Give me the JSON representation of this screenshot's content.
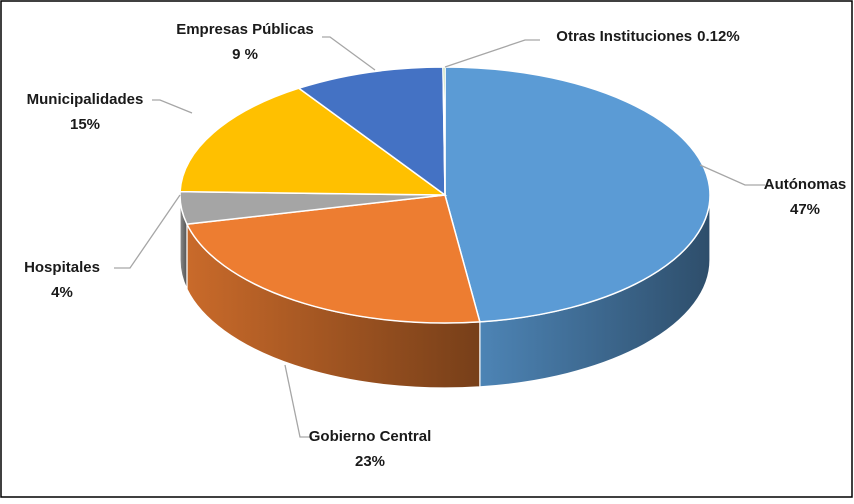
{
  "chart_data": {
    "type": "pie3d",
    "categories": [
      "Autónomas",
      "Gobierno Central",
      "Hospitales",
      "Municipalidades",
      "Empresas Públicas",
      "Otras Instituciones"
    ],
    "values": [
      47,
      23,
      4,
      15,
      9,
      0.12
    ],
    "value_labels": [
      "47%",
      "23%",
      "4%",
      "15%",
      "9 %",
      "0.12%"
    ],
    "colors": [
      "#5b9bd5",
      "#ed7d31",
      "#a5a5a5",
      "#ffc000",
      "#4472c4",
      "#70ad47"
    ]
  }
}
